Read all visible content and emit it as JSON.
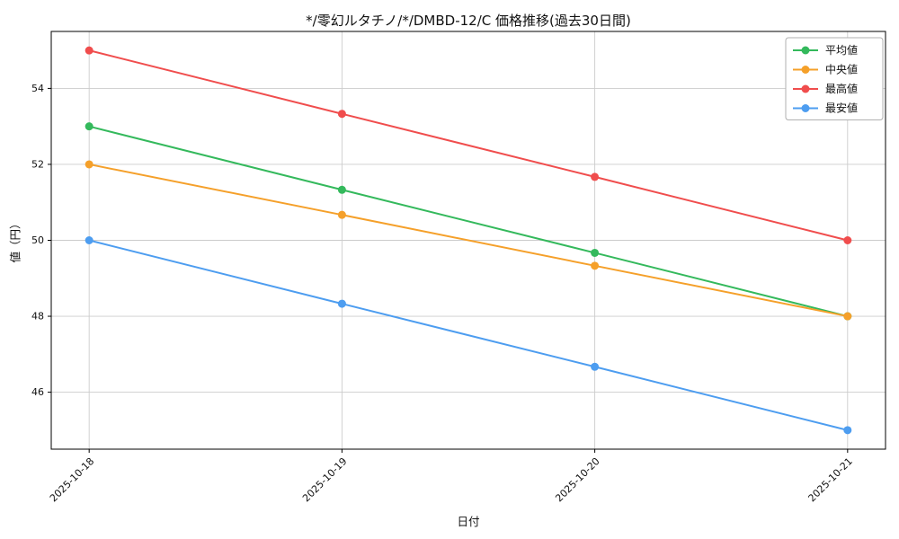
{
  "chart_data": {
    "type": "line",
    "title": "*/零幻ルタチノ/*/DMBD-12/C 価格推移(過去30日間)",
    "xlabel": "日付",
    "ylabel": "値（円）",
    "categories": [
      "2025-10-18",
      "2025-10-19",
      "2025-10-20",
      "2025-10-21"
    ],
    "series": [
      {
        "key": "average",
        "name": "平均値",
        "color": "#34b95c",
        "values": [
          53,
          51.33,
          49.67,
          48
        ]
      },
      {
        "key": "median",
        "name": "中央値",
        "color": "#f5a02a",
        "values": [
          52,
          50.67,
          49.33,
          48
        ]
      },
      {
        "key": "max",
        "name": "最高値",
        "color": "#f04d4d",
        "values": [
          55,
          53.33,
          51.67,
          50
        ]
      },
      {
        "key": "min",
        "name": "最安値",
        "color": "#4d9df0",
        "values": [
          50,
          48.33,
          46.67,
          45
        ]
      }
    ],
    "ylim": [
      44.5,
      55.5
    ],
    "yticks": [
      46,
      48,
      50,
      52,
      54
    ],
    "grid": true,
    "legend_position": "top-right"
  }
}
